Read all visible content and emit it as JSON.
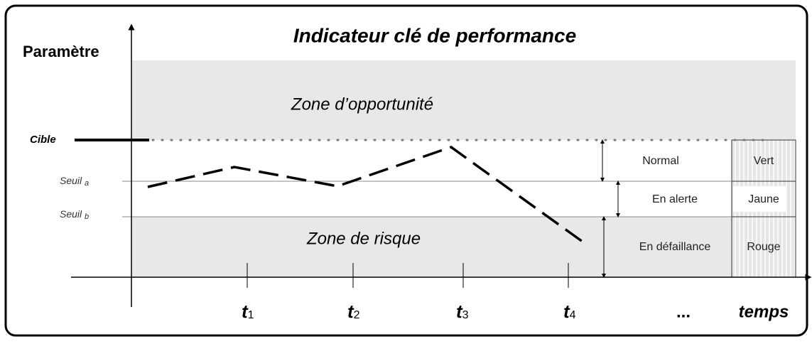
{
  "title": "Indicateur clé de performance",
  "y_axis_label": "Paramètre",
  "x_axis_label": "temps",
  "levels": {
    "target": "Cible",
    "threshold_a": {
      "text": "Seuil",
      "sub": "a"
    },
    "threshold_b": {
      "text": "Seuil",
      "sub": "b"
    }
  },
  "zones": {
    "opportunity": "Zone d’opportunité",
    "risk": "Zone de risque"
  },
  "states": [
    {
      "label": "Normal",
      "color": "Vert"
    },
    {
      "label": "En alerte",
      "color": "Jaune"
    },
    {
      "label": "En défaillance",
      "color": "Rouge"
    }
  ],
  "time_ticks": [
    {
      "text": "t",
      "sub": "1"
    },
    {
      "text": "t",
      "sub": "2"
    },
    {
      "text": "t",
      "sub": "3"
    },
    {
      "text": "t",
      "sub": "4"
    }
  ],
  "ellipsis": "..."
}
